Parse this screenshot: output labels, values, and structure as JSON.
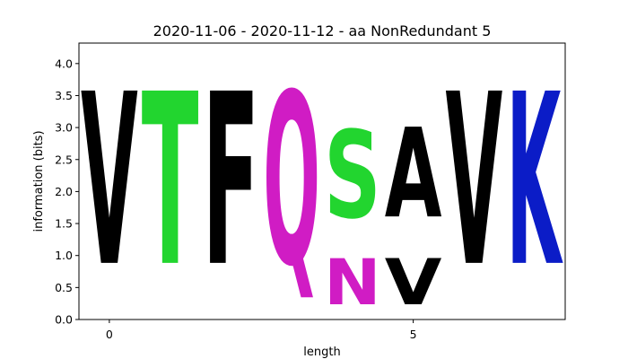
{
  "chart_data": {
    "type": "sequence-logo",
    "title": "2020-11-06 - 2020-11-12 - aa NonRedundant 5",
    "xlabel": "length",
    "ylabel": "information (bits)",
    "xlim": [
      -0.5,
      7.5
    ],
    "ylim": [
      0,
      4.32
    ],
    "xticks": [
      0,
      5
    ],
    "yticks": [
      0.0,
      0.5,
      1.0,
      1.5,
      2.0,
      2.5,
      3.0,
      3.5,
      4.0
    ],
    "colors": {
      "hydrophobic": "#000000",
      "polar": "#22d52f",
      "neutral": "#d01cc4",
      "basic": "#0b1cc7"
    },
    "positions": [
      {
        "position": 0,
        "stack": [
          {
            "letter": "V",
            "bits": 4.32,
            "color": "#000000"
          }
        ]
      },
      {
        "position": 1,
        "stack": [
          {
            "letter": "T",
            "bits": 4.32,
            "color": "#22d52f"
          }
        ]
      },
      {
        "position": 2,
        "stack": [
          {
            "letter": "F",
            "bits": 4.32,
            "color": "#000000"
          }
        ]
      },
      {
        "position": 3,
        "stack": [
          {
            "letter": "Q",
            "bits": 4.32,
            "color": "#d01cc4"
          }
        ]
      },
      {
        "position": 4,
        "stack": [
          {
            "letter": "N",
            "bits": 1.15,
            "color": "#d01cc4"
          },
          {
            "letter": "S",
            "bits": 2.2,
            "color": "#22d52f"
          }
        ]
      },
      {
        "position": 5,
        "stack": [
          {
            "letter": "V",
            "bits": 1.15,
            "color": "#000000"
          },
          {
            "letter": "A",
            "bits": 2.25,
            "color": "#000000"
          }
        ]
      },
      {
        "position": 6,
        "stack": [
          {
            "letter": "V",
            "bits": 4.32,
            "color": "#000000"
          }
        ]
      },
      {
        "position": 7,
        "stack": [
          {
            "letter": "K",
            "bits": 4.32,
            "color": "#0b1cc7"
          }
        ]
      }
    ]
  }
}
